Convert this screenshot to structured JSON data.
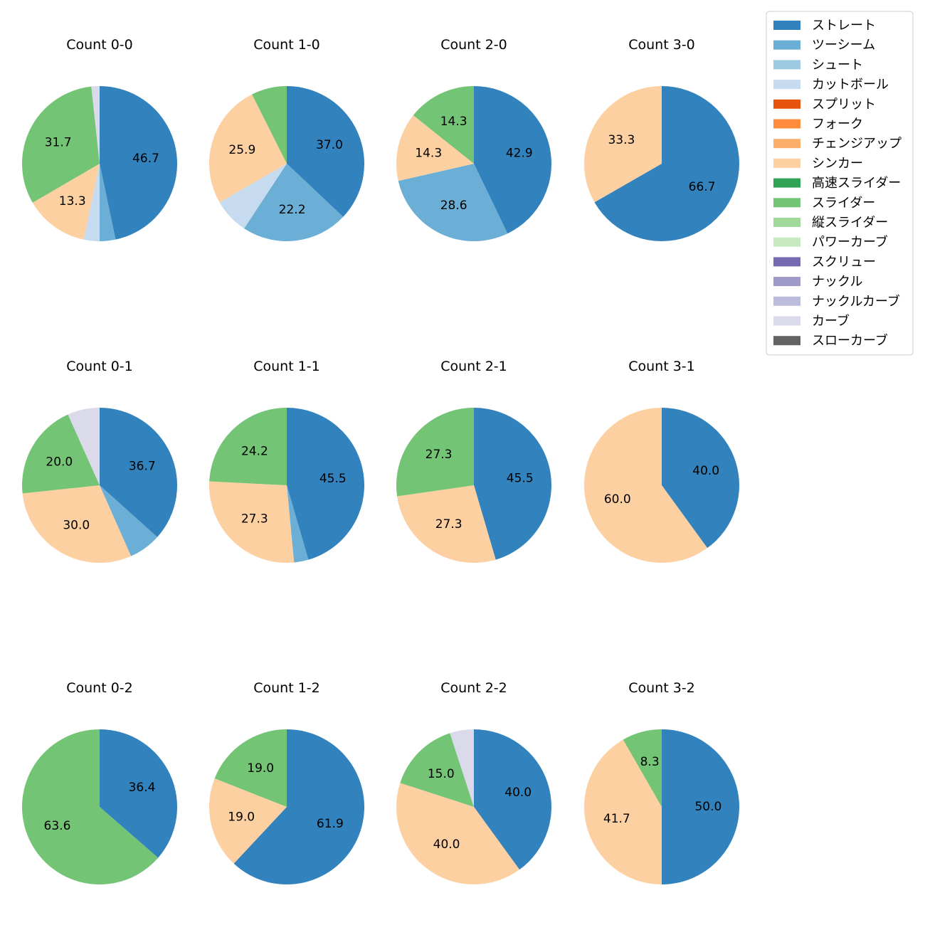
{
  "colors": {
    "ストレート": "#3182bd",
    "ツーシーム": "#6baed6",
    "シュート": "#9ecae1",
    "カットボール": "#c6dbef",
    "スプリット": "#e6550d",
    "フォーク": "#fd8d3c",
    "チェンジアップ": "#fdae6b",
    "シンカー": "#fdd0a2",
    "高速スライダー": "#31a354",
    "スライダー": "#74c476",
    "縦スライダー": "#a1d99b",
    "パワーカーブ": "#c7e9c0",
    "スクリュー": "#756bb1",
    "ナックル": "#9e9ac8",
    "ナックルカーブ": "#bcbddc",
    "カーブ": "#dadaeb",
    "スローカーブ": "#636363"
  },
  "chart_data": {
    "type": "pie",
    "legend": {
      "placement": "top-right",
      "entries": [
        "ストレート",
        "ツーシーム",
        "シュート",
        "カットボール",
        "スプリット",
        "フォーク",
        "チェンジアップ",
        "シンカー",
        "高速スライダー",
        "スライダー",
        "縦スライダー",
        "パワーカーブ",
        "スクリュー",
        "ナックル",
        "ナックルカーブ",
        "カーブ",
        "スローカーブ"
      ]
    },
    "charts": [
      {
        "title": "Count 0-0",
        "slices": [
          {
            "name": "ストレート",
            "value": 46.7,
            "label": "46.7"
          },
          {
            "name": "ツーシーム",
            "value": 3.3
          },
          {
            "name": "カットボール",
            "value": 3.3
          },
          {
            "name": "シンカー",
            "value": 13.3,
            "label": "13.3"
          },
          {
            "name": "スライダー",
            "value": 31.7,
            "label": "31.7"
          },
          {
            "name": "カーブ",
            "value": 1.7
          }
        ]
      },
      {
        "title": "Count 1-0",
        "slices": [
          {
            "name": "ストレート",
            "value": 37.0,
            "label": "37.0"
          },
          {
            "name": "ツーシーム",
            "value": 22.2,
            "label": "22.2"
          },
          {
            "name": "カットボール",
            "value": 7.4
          },
          {
            "name": "シンカー",
            "value": 25.9,
            "label": "25.9"
          },
          {
            "name": "スライダー",
            "value": 7.4
          }
        ]
      },
      {
        "title": "Count 2-0",
        "slices": [
          {
            "name": "ストレート",
            "value": 42.9,
            "label": "42.9"
          },
          {
            "name": "ツーシーム",
            "value": 28.6,
            "label": "28.6"
          },
          {
            "name": "シンカー",
            "value": 14.3,
            "label": "14.3"
          },
          {
            "name": "スライダー",
            "value": 14.3,
            "label": "14.3"
          }
        ]
      },
      {
        "title": "Count 3-0",
        "slices": [
          {
            "name": "ストレート",
            "value": 66.7,
            "label": "66.7"
          },
          {
            "name": "シンカー",
            "value": 33.3,
            "label": "33.3"
          }
        ]
      },
      {
        "title": "Count 0-1",
        "slices": [
          {
            "name": "ストレート",
            "value": 36.7,
            "label": "36.7"
          },
          {
            "name": "ツーシーム",
            "value": 6.7
          },
          {
            "name": "シンカー",
            "value": 30.0,
            "label": "30.0"
          },
          {
            "name": "スライダー",
            "value": 20.0,
            "label": "20.0"
          },
          {
            "name": "カーブ",
            "value": 6.7
          }
        ]
      },
      {
        "title": "Count 1-1",
        "slices": [
          {
            "name": "ストレート",
            "value": 45.5,
            "label": "45.5"
          },
          {
            "name": "ツーシーム",
            "value": 3.0
          },
          {
            "name": "シンカー",
            "value": 27.3,
            "label": "27.3"
          },
          {
            "name": "スライダー",
            "value": 24.2,
            "label": "24.2"
          }
        ]
      },
      {
        "title": "Count 2-1",
        "slices": [
          {
            "name": "ストレート",
            "value": 45.5,
            "label": "45.5"
          },
          {
            "name": "シンカー",
            "value": 27.3,
            "label": "27.3"
          },
          {
            "name": "スライダー",
            "value": 27.3,
            "label": "27.3"
          }
        ]
      },
      {
        "title": "Count 3-1",
        "slices": [
          {
            "name": "ストレート",
            "value": 40.0,
            "label": "40.0"
          },
          {
            "name": "シンカー",
            "value": 60.0,
            "label": "60.0"
          }
        ]
      },
      {
        "title": "Count 0-2",
        "slices": [
          {
            "name": "ストレート",
            "value": 36.4,
            "label": "36.4"
          },
          {
            "name": "スライダー",
            "value": 63.6,
            "label": "63.6"
          }
        ]
      },
      {
        "title": "Count 1-2",
        "slices": [
          {
            "name": "ストレート",
            "value": 61.9,
            "label": "61.9"
          },
          {
            "name": "シンカー",
            "value": 19.0,
            "label": "19.0"
          },
          {
            "name": "スライダー",
            "value": 19.0,
            "label": "19.0"
          }
        ]
      },
      {
        "title": "Count 2-2",
        "slices": [
          {
            "name": "ストレート",
            "value": 40.0,
            "label": "40.0"
          },
          {
            "name": "シンカー",
            "value": 40.0,
            "label": "40.0"
          },
          {
            "name": "スライダー",
            "value": 15.0,
            "label": "15.0"
          },
          {
            "name": "カーブ",
            "value": 5.0
          }
        ]
      },
      {
        "title": "Count 3-2",
        "slices": [
          {
            "name": "ストレート",
            "value": 50.0,
            "label": "50.0"
          },
          {
            "name": "シンカー",
            "value": 41.7,
            "label": "41.7"
          },
          {
            "name": "スライダー",
            "value": 8.3,
            "label": "8.3"
          }
        ]
      }
    ]
  }
}
